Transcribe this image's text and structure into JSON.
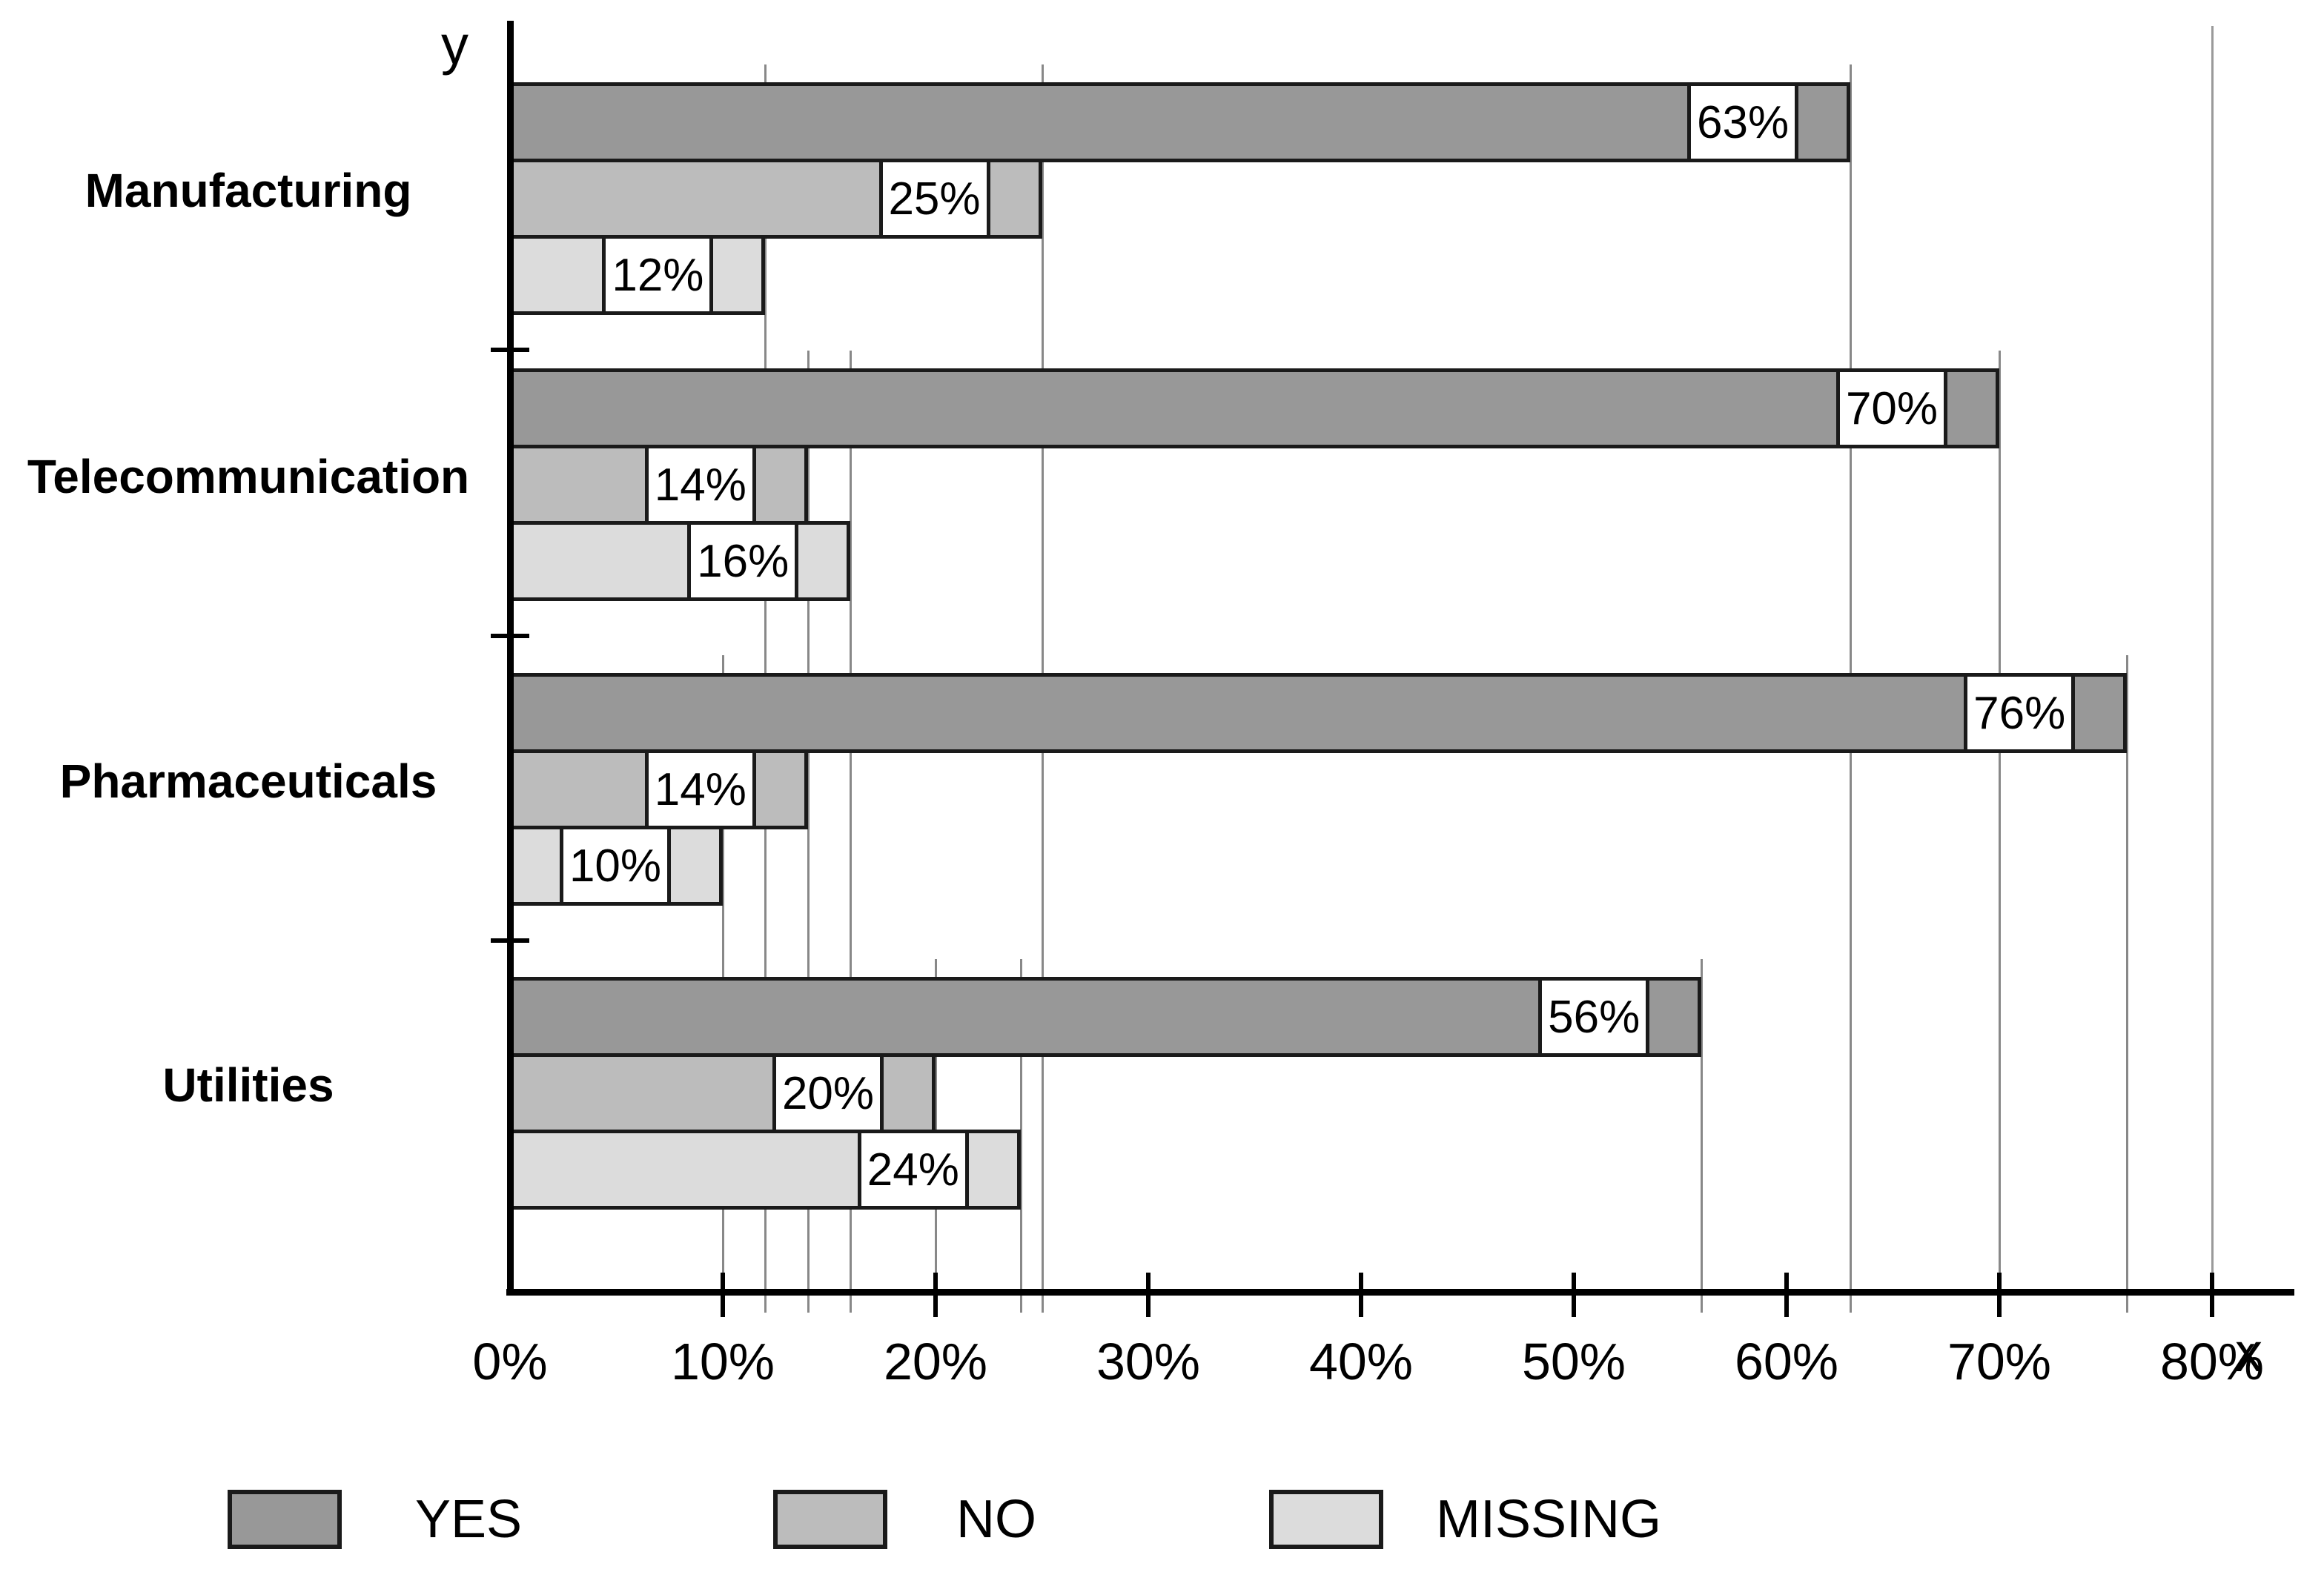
{
  "chart_data": {
    "type": "bar",
    "orientation": "horizontal",
    "title": "",
    "xlabel": "x",
    "ylabel": "y",
    "categories": [
      "Manufacturing",
      "Telecommunication",
      "Pharmaceuticals",
      "Utilities"
    ],
    "series": [
      {
        "name": "YES",
        "color": "#989898",
        "values": [
          63,
          70,
          76,
          56
        ]
      },
      {
        "name": "NO",
        "color": "#bcbcbc",
        "values": [
          25,
          14,
          14,
          20
        ]
      },
      {
        "name": "MISSING",
        "color": "#dcdcdc",
        "values": [
          12,
          16,
          10,
          24
        ]
      }
    ],
    "bar_value_labels": [
      [
        "63%",
        "25%",
        "12%"
      ],
      [
        "70%",
        "14%",
        "16%"
      ],
      [
        "76%",
        "14%",
        "10%"
      ],
      [
        "56%",
        "20%",
        "24%"
      ]
    ],
    "x_ticks": [
      {
        "value": 0,
        "label": "0%"
      },
      {
        "value": 10,
        "label": "10%"
      },
      {
        "value": 20,
        "label": "20%"
      },
      {
        "value": 30,
        "label": "30%"
      },
      {
        "value": 40,
        "label": "40%"
      },
      {
        "value": 50,
        "label": "50%"
      },
      {
        "value": 60,
        "label": "60%"
      },
      {
        "value": 70,
        "label": "70%"
      },
      {
        "value": 80,
        "label": "80%"
      }
    ],
    "xlim": [
      0,
      84
    ],
    "reference_line_value": 80,
    "grid": "drop-lines-at-bar-ends",
    "legend_position": "bottom",
    "legend": [
      "YES",
      "NO",
      "MISSING"
    ]
  },
  "axis": {
    "x_letter": "x",
    "y_letter": "y"
  },
  "colors": {
    "bar_border": "#1a1a1a",
    "axis": "#000000",
    "drop_line": "#888888",
    "label_box_bg": "#ffffff"
  }
}
